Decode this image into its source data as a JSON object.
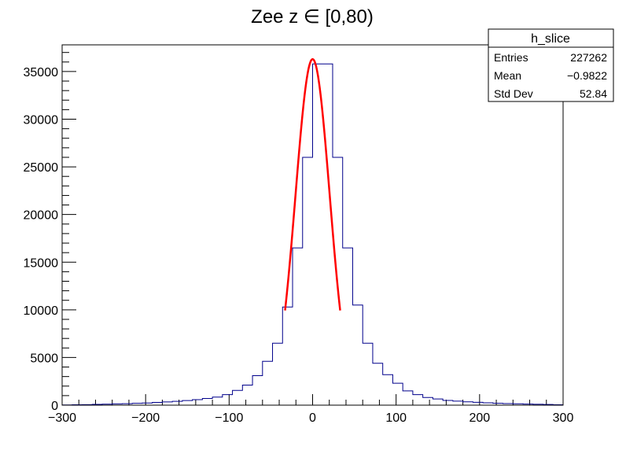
{
  "chart_data": {
    "type": "bar",
    "title": "Zee z ∈ [0,80)",
    "xlabel": "",
    "ylabel": "",
    "xlim": [
      -300,
      300
    ],
    "ylim": [
      0,
      37800
    ],
    "x_ticks": [
      -300,
      -200,
      -100,
      0,
      100,
      200,
      300
    ],
    "x_tick_labels": [
      "−300",
      "−200",
      "−100",
      "0",
      "100",
      "200",
      "300"
    ],
    "y_ticks": [
      0,
      5000,
      10000,
      15000,
      20000,
      25000,
      30000,
      35000
    ],
    "y_tick_labels": [
      "0",
      "5000",
      "10000",
      "15000",
      "20000",
      "25000",
      "30000",
      "35000"
    ],
    "grid": false,
    "histogram_color": "#00008b",
    "fit_color": "#ff0000",
    "series": [
      {
        "name": "h_slice",
        "kind": "histogram",
        "bin_edges": [
          -300,
          -288,
          -276,
          -264,
          -252,
          -240,
          -228,
          -216,
          -204,
          -192,
          -180,
          -168,
          -156,
          -144,
          -132,
          -120,
          -108,
          -96,
          -84,
          -72,
          -60,
          -48,
          -36,
          -24,
          -12,
          0,
          12,
          24,
          36,
          48,
          60,
          72,
          84,
          96,
          108,
          120,
          132,
          144,
          156,
          168,
          180,
          192,
          204,
          216,
          228,
          240,
          252,
          264,
          276,
          288,
          300
        ],
        "values": [
          20,
          40,
          50,
          80,
          100,
          130,
          150,
          200,
          230,
          290,
          340,
          400,
          480,
          580,
          700,
          850,
          1100,
          1550,
          2100,
          3100,
          4600,
          6500,
          10300,
          16500,
          26000,
          35800,
          35800,
          26000,
          16500,
          10500,
          6500,
          4400,
          3200,
          2300,
          1500,
          1100,
          800,
          650,
          500,
          420,
          350,
          300,
          250,
          200,
          170,
          140,
          110,
          90,
          70,
          40
        ]
      },
      {
        "name": "",
        "kind": "fit",
        "function": "gaus",
        "x_range": [
          -33,
          33
        ],
        "amplitude": 36300,
        "mean": 0,
        "sigma": 20.5
      }
    ],
    "stats_box": {
      "title": "h_slice",
      "rows": [
        {
          "label": "Entries",
          "value": "227262"
        },
        {
          "label": "Mean",
          "value": "−0.9822"
        },
        {
          "label": "Std Dev",
          "value": "52.84"
        }
      ],
      "placement": "top-right"
    }
  }
}
